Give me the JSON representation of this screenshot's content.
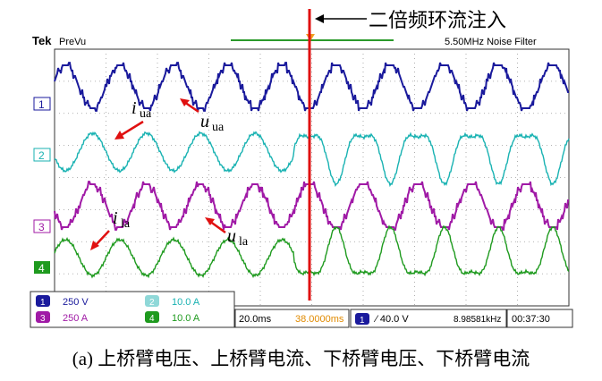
{
  "header": {
    "brand": "Tek",
    "mode": "PreVu",
    "filter": "5.50MHz  Noise Filter"
  },
  "annotation": {
    "injection_label": "二倍频环流注入"
  },
  "channels": [
    {
      "id": "1",
      "color": "#1a1a9c"
    },
    {
      "id": "2",
      "color": "#18b2b2"
    },
    {
      "id": "3",
      "color": "#a01aa6"
    },
    {
      "id": "4",
      "color": "#1e9a1e"
    }
  ],
  "labels": {
    "u_ua": "u",
    "u_ua_sub": "ua",
    "i_ua": "i",
    "i_ua_sub": "ua",
    "u_la": "u",
    "u_la_sub": "la",
    "i_la": "i",
    "i_la_sub": "la"
  },
  "footer": {
    "ch1_scale": "250 V",
    "ch2_scale": "10.0 A",
    "ch3_scale": "250 A",
    "ch4_scale": "10.0 A",
    "timebase": "20.0ms",
    "position": "38.0000ms",
    "trigger_ch": "1",
    "trigger_level": "⁄ 40.0 V",
    "frequency": "8.98581kHz",
    "clock": "00:37:30"
  },
  "caption": "(a) 上桥臂电压、上桥臂电流、下桥臂电压、下桥臂电流",
  "chart_data": {
    "type": "line",
    "x_divisions": 10,
    "y_divisions": 8,
    "injection_at_division": 4.65,
    "cycles_in_window": 9.5,
    "series": [
      {
        "channel": "1",
        "kind": "voltage",
        "multilevel": true
      },
      {
        "channel": "2",
        "kind": "current",
        "second_harmonic_after_injection": true
      },
      {
        "channel": "3",
        "kind": "voltage",
        "multilevel": true
      },
      {
        "channel": "4",
        "kind": "current",
        "second_harmonic_after_injection": true
      }
    ]
  }
}
